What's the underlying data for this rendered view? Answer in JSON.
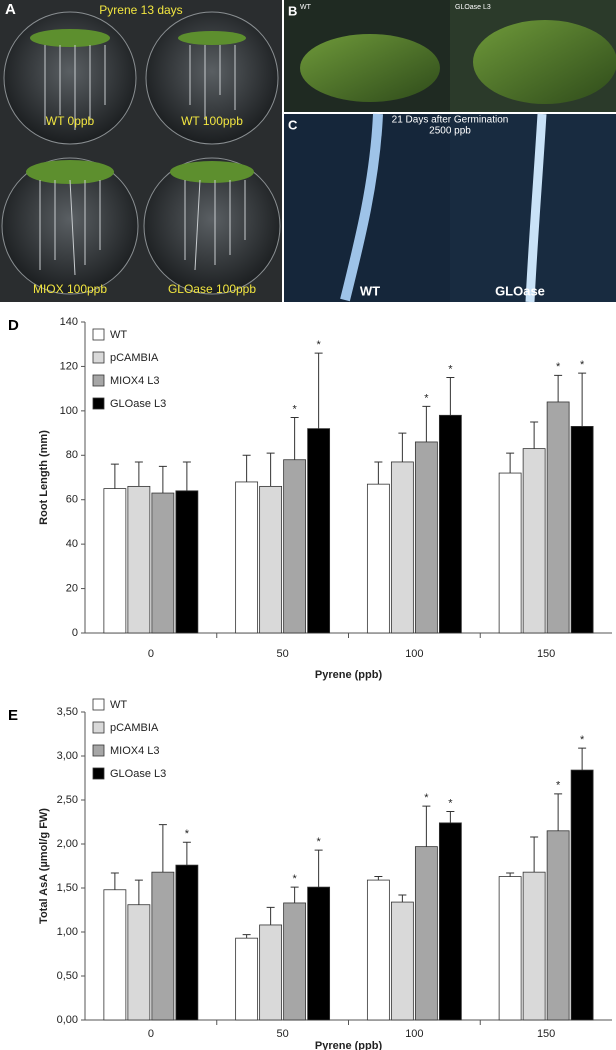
{
  "panels": {
    "A": {
      "letter": "A",
      "title": "Pyrene 13 days",
      "dishes": [
        "WT 0ppb",
        "WT 100ppb",
        "MIOX 100ppb",
        "GLOase 100ppb"
      ]
    },
    "B": {
      "letter": "B",
      "left": "WT",
      "right": "GLOase L3"
    },
    "C": {
      "letter": "C",
      "title": "21 Days after Germination",
      "subtitle": "2500 ppb",
      "left": "WT",
      "right": "GLOase"
    }
  },
  "chart_data": [
    {
      "type": "bar",
      "panel": "D",
      "y_label": "Root Length (mm)",
      "x_label": "Pyrene (ppb)",
      "categories": [
        "0",
        "50",
        "100",
        "150"
      ],
      "ylim": [
        0,
        140
      ],
      "yticks": [
        0,
        20,
        40,
        60,
        80,
        100,
        120,
        140
      ],
      "significance_mark": "*",
      "series": [
        {
          "name": "WT",
          "color": "#ffffff",
          "values": [
            65,
            68,
            67,
            72
          ],
          "errors": [
            11,
            12,
            10,
            9
          ],
          "significant": [
            false,
            false,
            false,
            false
          ]
        },
        {
          "name": "pCAMBIA",
          "color": "#d9d9d9",
          "values": [
            66,
            66,
            77,
            83
          ],
          "errors": [
            11,
            15,
            13,
            12
          ],
          "significant": [
            false,
            false,
            false,
            false
          ]
        },
        {
          "name": "MIOX4 L3",
          "color": "#a6a6a6",
          "values": [
            63,
            78,
            86,
            104
          ],
          "errors": [
            12,
            19,
            16,
            12
          ],
          "significant": [
            false,
            true,
            true,
            true
          ]
        },
        {
          "name": "GLOase L3",
          "color": "#000000",
          "values": [
            64,
            92,
            98,
            93
          ],
          "errors": [
            13,
            34,
            17,
            24
          ],
          "significant": [
            false,
            true,
            true,
            true
          ]
        }
      ]
    },
    {
      "type": "bar",
      "panel": "E",
      "y_label": "Total AsA (µmol/g FW)",
      "x_label": "Pyrene (ppb)",
      "categories": [
        "0",
        "50",
        "100",
        "150"
      ],
      "ylim": [
        0,
        3.5
      ],
      "yticks": [
        {
          "value": 0,
          "label": "0,00"
        },
        {
          "value": 0.5,
          "label": "0,50"
        },
        {
          "value": 1,
          "label": "1,00"
        },
        {
          "value": 1.5,
          "label": "1,50"
        },
        {
          "value": 2,
          "label": "2,00"
        },
        {
          "value": 2.5,
          "label": "2,50"
        },
        {
          "value": 3,
          "label": "3,00"
        },
        {
          "value": 3.5,
          "label": "3,50"
        }
      ],
      "significance_mark": "*",
      "series": [
        {
          "name": "WT",
          "color": "#ffffff",
          "values": [
            1.48,
            0.93,
            1.59,
            1.63
          ],
          "errors": [
            0.19,
            0.04,
            0.04,
            0.04
          ],
          "significant": [
            false,
            false,
            false,
            false
          ]
        },
        {
          "name": "pCAMBIA",
          "color": "#d9d9d9",
          "values": [
            1.31,
            1.08,
            1.34,
            1.68
          ],
          "errors": [
            0.28,
            0.2,
            0.08,
            0.4
          ],
          "significant": [
            false,
            false,
            false,
            false
          ]
        },
        {
          "name": "MIOX4 L3",
          "color": "#a6a6a6",
          "values": [
            1.68,
            1.33,
            1.97,
            2.15
          ],
          "errors": [
            0.54,
            0.18,
            0.46,
            0.42
          ],
          "significant": [
            false,
            true,
            true,
            true
          ]
        },
        {
          "name": "GLOase L3",
          "color": "#000000",
          "values": [
            1.76,
            1.51,
            2.24,
            2.84
          ],
          "errors": [
            0.26,
            0.42,
            0.13,
            0.25
          ],
          "significant": [
            true,
            true,
            true,
            true
          ]
        }
      ]
    }
  ]
}
